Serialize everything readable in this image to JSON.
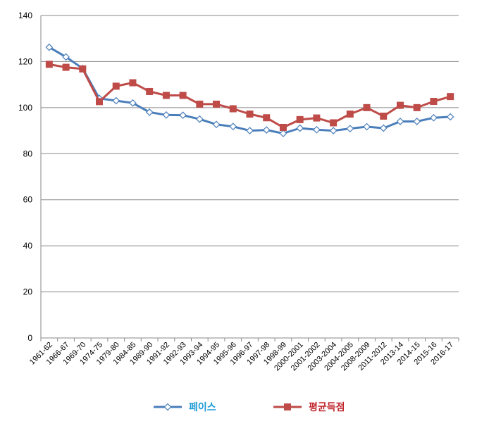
{
  "chart_data": {
    "type": "line",
    "title": "",
    "xlabel": "",
    "ylabel": "",
    "ylim": [
      0,
      140
    ],
    "yticks": [
      0,
      20,
      40,
      60,
      80,
      100,
      120,
      140
    ],
    "grid": "horizontal",
    "legend_position": "bottom",
    "categories": [
      "1961-62",
      "1966-67",
      "1969-70",
      "1974-75",
      "1979-80",
      "1984-85",
      "1989-90",
      "1991-92",
      "1992-93",
      "1993-94",
      "1994-95",
      "1995-96",
      "1996-97",
      "1997-98",
      "1998-99",
      "2000-2001",
      "2001-2002",
      "2003-2004",
      "2004-2005",
      "2008-2009",
      "2011-2012",
      "2013-14",
      "2014-15",
      "2015-16",
      "2016-17"
    ],
    "series": [
      {
        "name": "페이스",
        "color": "#4a7ebb",
        "marker": "diamond",
        "values": [
          126.2,
          122.0,
          117.0,
          104.0,
          103.0,
          102.0,
          98.0,
          96.8,
          96.7,
          95.0,
          92.7,
          91.8,
          90.0,
          90.3,
          88.8,
          91.1,
          90.4,
          90.0,
          90.9,
          91.7,
          91.1,
          94.0,
          94.0,
          95.6,
          96.0
        ]
      },
      {
        "name": "평균득점",
        "color": "#be4b48",
        "marker": "square",
        "values": [
          118.8,
          117.5,
          116.8,
          102.6,
          109.3,
          110.8,
          107.0,
          105.3,
          105.3,
          101.5,
          101.5,
          99.5,
          97.2,
          95.6,
          91.4,
          94.8,
          95.5,
          93.4,
          97.2,
          100.0,
          96.3,
          101.0,
          100.0,
          102.7,
          104.8
        ]
      }
    ]
  }
}
